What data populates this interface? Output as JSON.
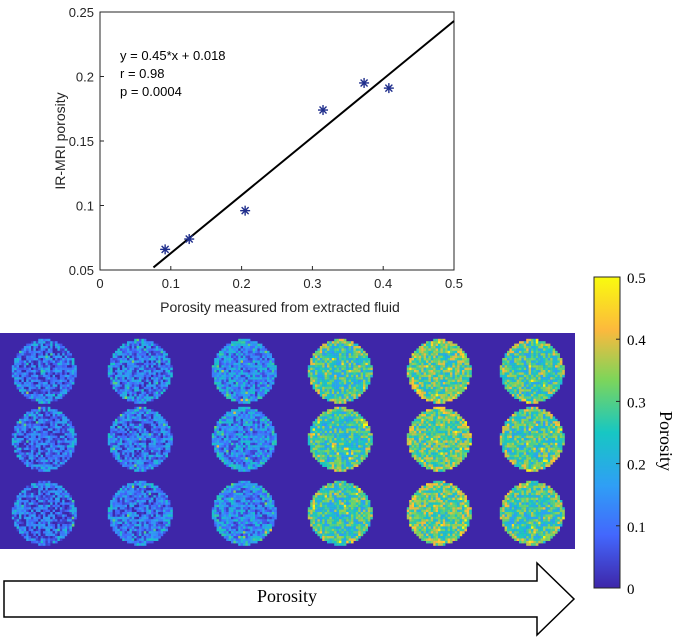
{
  "scatter": {
    "type": "scatter",
    "ylabel": "IR-MRI porosity",
    "xlabel": "Porosity measured from extracted fluid",
    "xlim": [
      0,
      0.5
    ],
    "ylim": [
      0.05,
      0.25
    ],
    "xticks": [
      "0",
      "0.1",
      "0.2",
      "0.3",
      "0.4",
      "0.5"
    ],
    "yticks": [
      "0.05",
      "0.1",
      "0.15",
      "0.2",
      "0.25"
    ],
    "points": [
      {
        "x": 0.092,
        "y": 0.066
      },
      {
        "x": 0.126,
        "y": 0.074
      },
      {
        "x": 0.205,
        "y": 0.096
      },
      {
        "x": 0.315,
        "y": 0.174
      },
      {
        "x": 0.373,
        "y": 0.195
      },
      {
        "x": 0.408,
        "y": 0.191
      }
    ],
    "fit": {
      "slope": 0.45,
      "intercept": 0.018,
      "x_from": 0.0755,
      "x_to": 0.5
    },
    "stats": [
      "y = 0.45*x + 0.018",
      "r = 0.98",
      "p = 0.0004"
    ],
    "marker_color": "#1f2e8c",
    "line_color": "#000000"
  },
  "heatmap": {
    "type": "heatmap",
    "rows": 3,
    "cols": 6,
    "background_color": "#3e26a8",
    "column_mean_porosity": [
      0.08,
      0.1,
      0.13,
      0.26,
      0.3,
      0.27
    ]
  },
  "colorbar": {
    "label": "Porosity",
    "range": [
      0,
      0.5
    ],
    "ticks": [
      "0.5",
      "0.4",
      "0.3",
      "0.2",
      "0.1",
      "0"
    ],
    "colormap": [
      "#3e26a8",
      "#4367fd",
      "#2f9ff5",
      "#17c7c3",
      "#7dd55a",
      "#fcb93d",
      "#f9fb0e"
    ]
  },
  "arrow": {
    "label": "Porosity"
  }
}
